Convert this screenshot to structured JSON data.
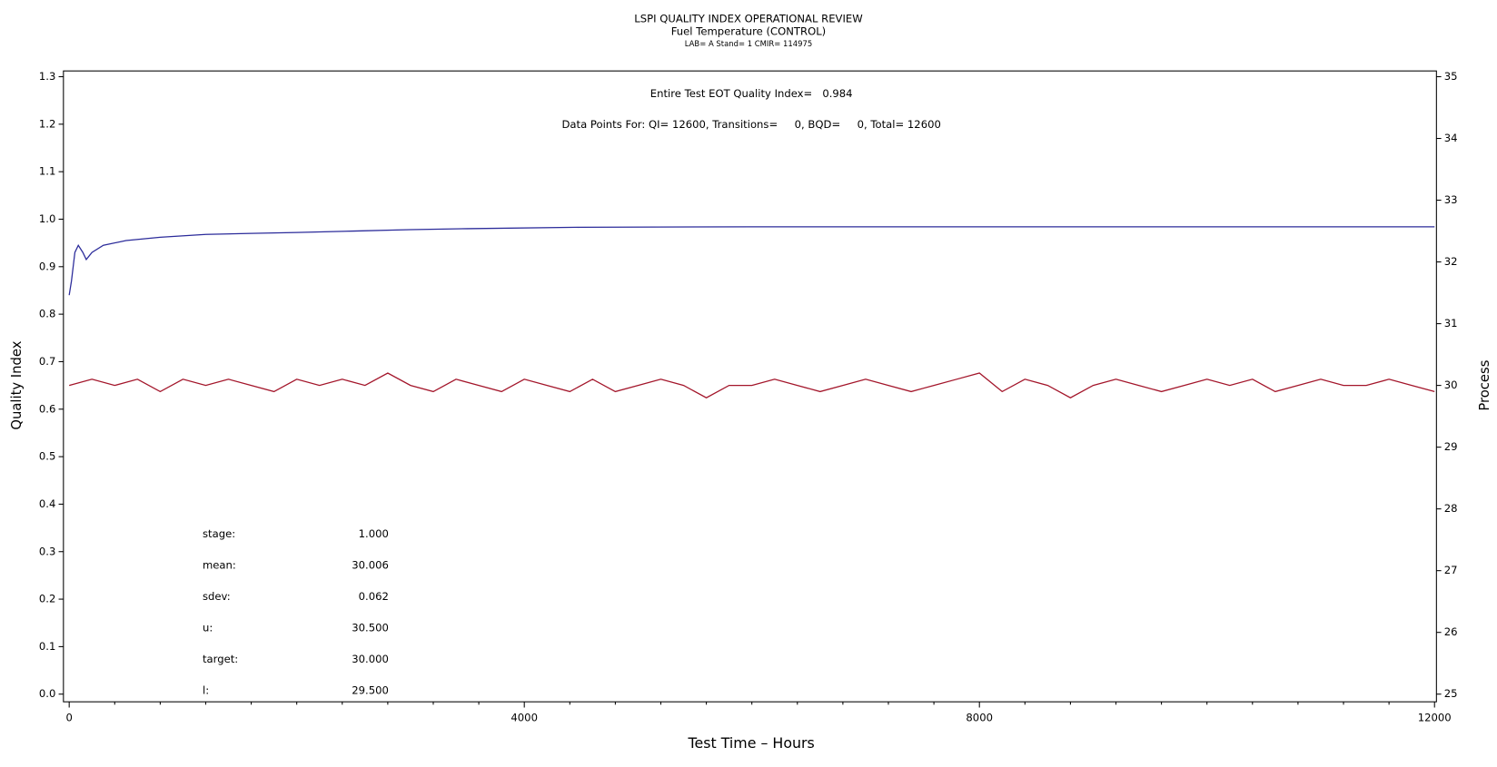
{
  "chart_data": {
    "type": "line",
    "title": "LSPI QUALITY INDEX OPERATIONAL REVIEW",
    "subtitle": "Fuel Temperature (CONTROL)",
    "subtitle2": "LAB= A Stand= 1 CMIR= 114975",
    "annotations": [
      "Entire Test EOT Quality Index=   0.984",
      "Data Points For: QI= 12600, Transitions=     0, BQD=     0, Total= 12600"
    ],
    "stats": [
      {
        "label": "stage:",
        "value": "1.000"
      },
      {
        "label": "mean:",
        "value": "30.006"
      },
      {
        "label": "sdev:",
        "value": "0.062"
      },
      {
        "label": "u:",
        "value": "30.500"
      },
      {
        "label": "target:",
        "value": "30.000"
      },
      {
        "label": "l:",
        "value": "29.500"
      }
    ],
    "xlabel": "Test Time – Hours",
    "ylabel": "Quality Index",
    "y2label": "Process",
    "xlim": [
      0,
      12000
    ],
    "xticks": [
      0,
      4000,
      8000,
      12000
    ],
    "xminorticks": [
      400,
      800,
      1200,
      1600,
      2000,
      2400,
      2800,
      3200,
      3600,
      4400,
      4800,
      5200,
      5600,
      6000,
      6400,
      6800,
      7200,
      7600,
      8400,
      8800,
      9200,
      9600,
      10000,
      10400,
      10800,
      11200,
      11600
    ],
    "ylim": [
      0,
      1.3
    ],
    "yticks": [
      {
        "value": 0,
        "label": "0.0"
      },
      0.1,
      0.2,
      0.3,
      0.4,
      0.5,
      0.6,
      0.7,
      0.8,
      0.9,
      {
        "value": 1,
        "label": "1.0"
      },
      1.1,
      1.2,
      1.3
    ],
    "y2lim": [
      25,
      35
    ],
    "y2ticks": [
      25,
      26,
      27,
      28,
      29,
      30,
      31,
      32,
      33,
      34,
      35
    ],
    "series": [
      {
        "color": "#2b2b9a",
        "axis": "y",
        "x": [
          0,
          20,
          50,
          80,
          120,
          150,
          200,
          300,
          500,
          800,
          1200,
          1600,
          2000,
          2500,
          3000,
          3500,
          4500,
          6000,
          9000,
          12000
        ],
        "values": [
          0.84,
          0.87,
          0.93,
          0.945,
          0.93,
          0.915,
          0.93,
          0.945,
          0.955,
          0.962,
          0.968,
          0.97,
          0.972,
          0.975,
          0.978,
          0.98,
          0.983,
          0.984,
          0.984,
          0.984
        ]
      },
      {
        "color": "#a3152a",
        "axis": "y2",
        "x": [
          0,
          200,
          400,
          600,
          800,
          1000,
          1200,
          1400,
          1600,
          1800,
          2000,
          2200,
          2400,
          2600,
          2800,
          3000,
          3200,
          3400,
          3600,
          3800,
          4000,
          4200,
          4400,
          4600,
          4800,
          5000,
          5200,
          5400,
          5600,
          5800,
          6000,
          6200,
          6400,
          6600,
          6800,
          7000,
          7200,
          7400,
          7600,
          7800,
          8000,
          8200,
          8400,
          8600,
          8800,
          9000,
          9200,
          9400,
          9600,
          9800,
          10000,
          10200,
          10400,
          10600,
          10800,
          11000,
          11200,
          11400,
          11600,
          11800,
          12000
        ],
        "values": [
          30.0,
          30.1,
          30.0,
          30.1,
          29.9,
          30.1,
          30.0,
          30.1,
          30.0,
          29.9,
          30.1,
          30.0,
          30.1,
          30.0,
          30.2,
          30.0,
          29.9,
          30.1,
          30.0,
          29.9,
          30.1,
          30.0,
          29.9,
          30.1,
          29.9,
          30.0,
          30.1,
          30.0,
          29.8,
          30.0,
          30.0,
          30.1,
          30.0,
          29.9,
          30.0,
          30.1,
          30.0,
          29.9,
          30.0,
          30.1,
          30.2,
          29.9,
          30.1,
          30.0,
          29.8,
          30.0,
          30.1,
          30.0,
          29.9,
          30.0,
          30.1,
          30.0,
          30.1,
          29.9,
          30.0,
          30.1,
          30.0,
          30.0,
          30.1,
          30.0,
          29.9
        ]
      }
    ]
  }
}
